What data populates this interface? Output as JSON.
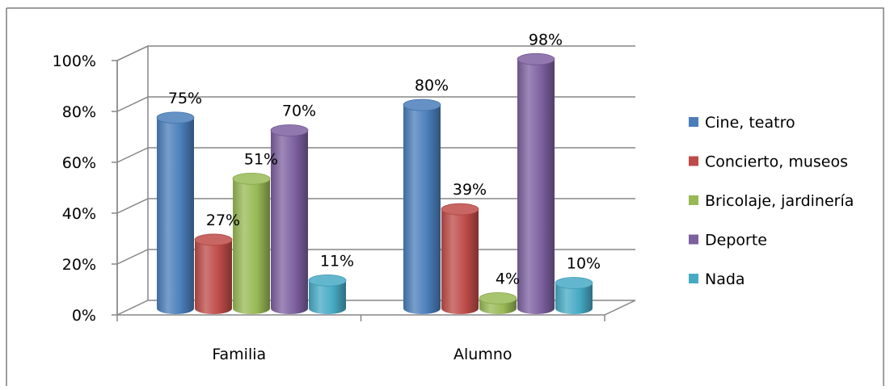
{
  "chart_data": {
    "type": "bar",
    "categories": [
      "Familia",
      "Alumno"
    ],
    "series": [
      {
        "name": "Cine, teatro",
        "color": "#4a7ebb",
        "values": [
          75,
          80
        ]
      },
      {
        "name": "Concierto, museos",
        "color": "#be4b48",
        "values": [
          27,
          39
        ]
      },
      {
        "name": "Bricolaje, jardinería",
        "color": "#98b954",
        "values": [
          51,
          4
        ]
      },
      {
        "name": "Deporte",
        "color": "#7d60a0",
        "values": [
          70,
          98
        ]
      },
      {
        "name": "Nada",
        "color": "#46aac5",
        "values": [
          11,
          10
        ]
      }
    ],
    "data_labels": [
      [
        "75%",
        "80%"
      ],
      [
        "27%",
        "39%"
      ],
      [
        "51%",
        "4%"
      ],
      [
        "70%",
        "98%"
      ],
      [
        "11%",
        "10%"
      ]
    ],
    "y_ticks": [
      "0%",
      "20%",
      "40%",
      "60%",
      "80%",
      "100%"
    ],
    "ylim": [
      0,
      100
    ],
    "grid": true,
    "legend": "right",
    "title": "",
    "xlabel": "",
    "ylabel": ""
  }
}
